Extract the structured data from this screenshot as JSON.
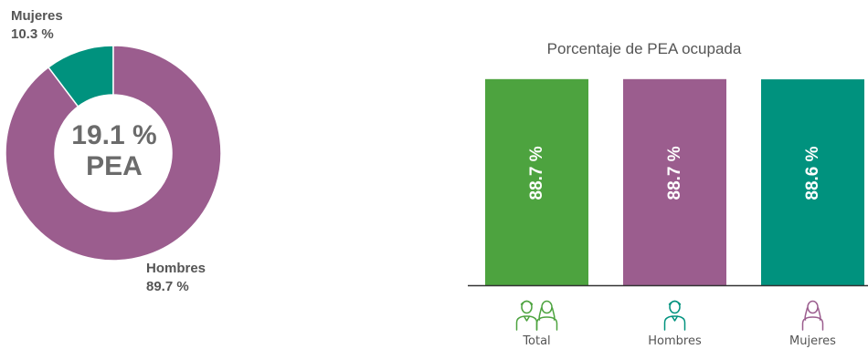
{
  "colors": {
    "total": "#4da33f",
    "hombres": "#9b5d8e",
    "mujeres": "#00927e",
    "text": "#555555"
  },
  "chart_data": [
    {
      "type": "pie",
      "title": "",
      "center_value": "19.1 %",
      "center_label": "PEA",
      "slices": [
        {
          "name": "Mujeres",
          "value": 10.3,
          "label": "10.3 %",
          "color": "#00927e"
        },
        {
          "name": "Hombres",
          "value": 89.7,
          "label": "89.7 %",
          "color": "#9b5d8e"
        }
      ]
    },
    {
      "type": "bar",
      "title": "Porcentaje de PEA ocupada",
      "categories": [
        "Total",
        "Hombres",
        "Mujeres"
      ],
      "values": [
        88.7,
        88.7,
        88.6
      ],
      "value_labels": [
        "88.7 %",
        "88.7 %",
        "88.6 %"
      ],
      "colors": [
        "#4da33f",
        "#9b5d8e",
        "#00927e"
      ],
      "icons": [
        "couple-icon",
        "man-icon",
        "woman-icon"
      ],
      "xlabel": "",
      "ylabel": "",
      "ylim": [
        0,
        100
      ],
      "grid": false
    }
  ]
}
